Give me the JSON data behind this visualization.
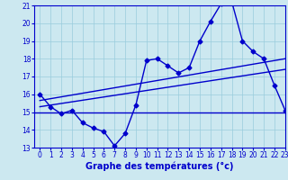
{
  "title": "Graphe des températures (°c)",
  "x_hours": [
    0,
    1,
    2,
    3,
    4,
    5,
    6,
    7,
    8,
    9,
    10,
    11,
    12,
    13,
    14,
    15,
    16,
    17,
    18,
    19,
    20,
    21,
    22,
    23
  ],
  "temps": [
    16.0,
    15.3,
    14.9,
    15.1,
    14.4,
    14.1,
    13.9,
    13.1,
    13.8,
    15.4,
    17.9,
    18.0,
    17.6,
    17.2,
    17.5,
    19.0,
    20.1,
    21.1,
    21.2,
    19.0,
    18.4,
    18.0,
    16.5,
    15.1
  ],
  "trend1_x": [
    0,
    23
  ],
  "trend1_y": [
    15.3,
    17.4
  ],
  "trend2_x": [
    0,
    23
  ],
  "trend2_y": [
    15.65,
    18.0
  ],
  "hline_y": 15.0,
  "ylim": [
    13,
    21
  ],
  "xlim": [
    -0.5,
    23
  ],
  "yticks": [
    13,
    14,
    15,
    16,
    17,
    18,
    19,
    20,
    21
  ],
  "xticks": [
    0,
    1,
    2,
    3,
    4,
    5,
    6,
    7,
    8,
    9,
    10,
    11,
    12,
    13,
    14,
    15,
    16,
    17,
    18,
    19,
    20,
    21,
    22,
    23
  ],
  "bg_color": "#cce8f0",
  "grid_color": "#99ccdd",
  "line_color": "#0000cc",
  "marker": "D",
  "markersize": 2.5,
  "linewidth": 1.0,
  "title_fontsize": 7.0,
  "tick_fontsize": 5.5
}
